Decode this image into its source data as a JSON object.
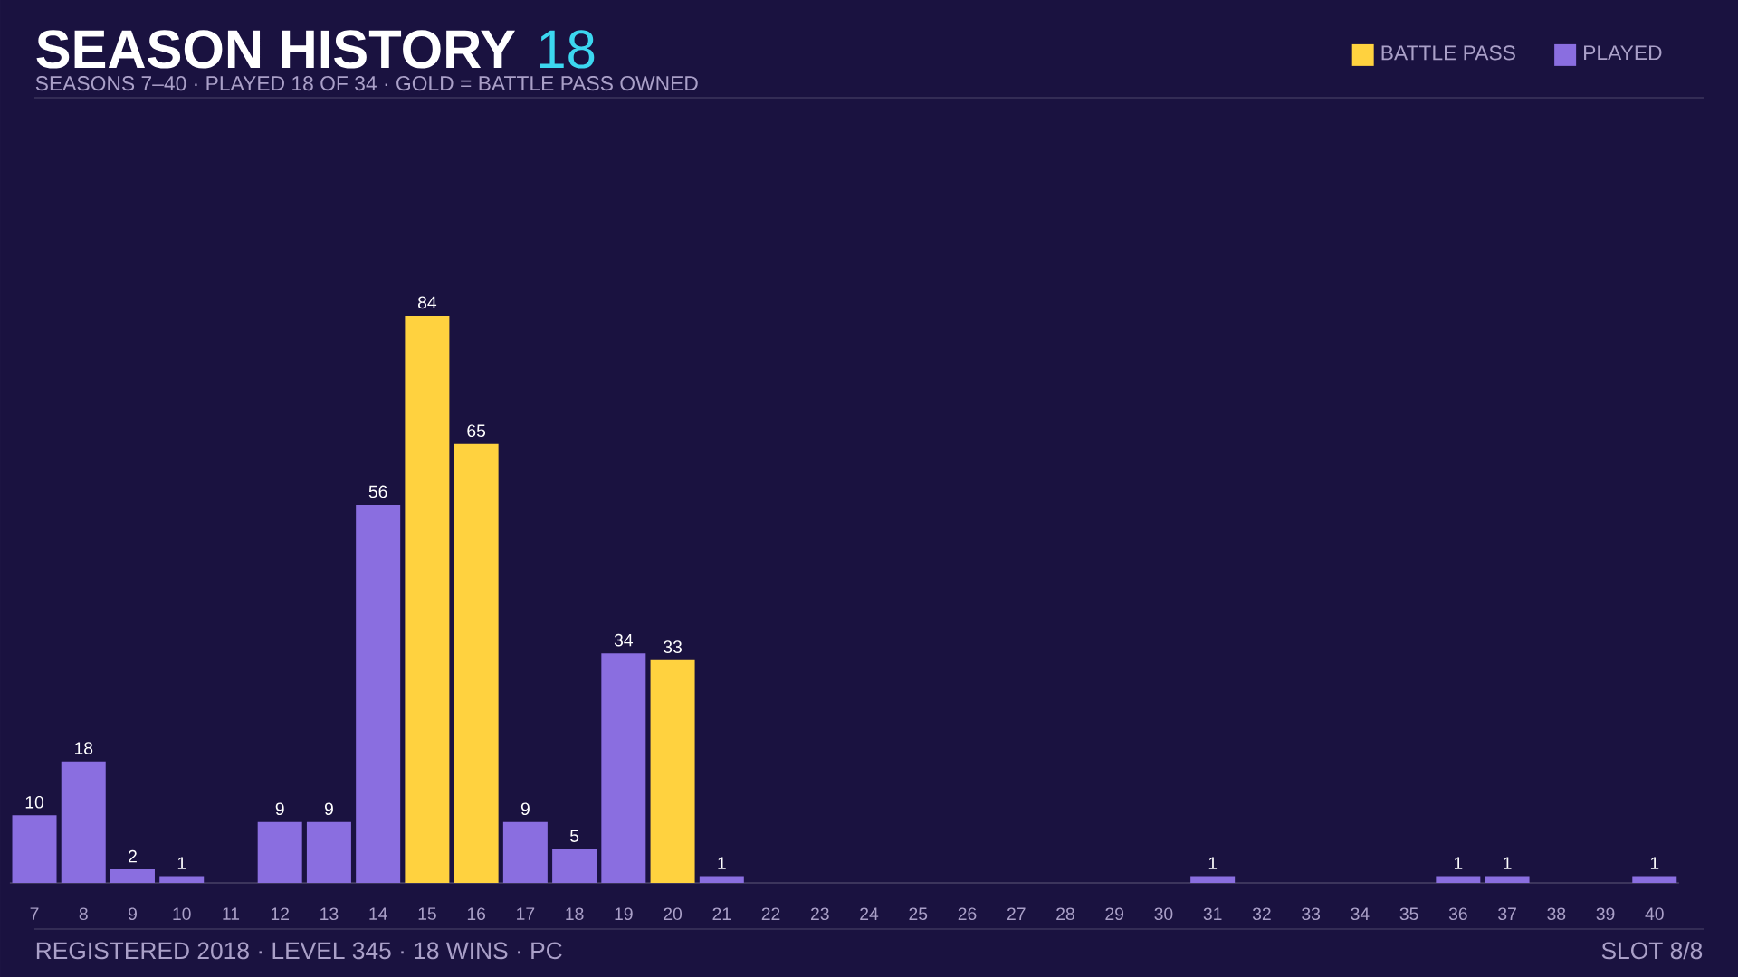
{
  "chart_data": {
    "type": "bar",
    "title": "SEASON HISTORY",
    "subtitle": "SEASONS 7–40 · PLAYED 18 OF 34 · GOLD = BATTLE PASS OWNED",
    "categories": [
      "7",
      "8",
      "9",
      "10",
      "11",
      "12",
      "13",
      "14",
      "15",
      "16",
      "17",
      "18",
      "19",
      "20",
      "21",
      "22",
      "23",
      "24",
      "25",
      "26",
      "27",
      "28",
      "29",
      "30",
      "31",
      "32",
      "33",
      "34",
      "35",
      "36",
      "37",
      "38",
      "39",
      "40"
    ],
    "series": [
      {
        "name": "BATTLE PASS",
        "color": "#ffd23f",
        "values": [
          null,
          null,
          null,
          null,
          null,
          null,
          null,
          null,
          84,
          65,
          null,
          null,
          null,
          33,
          null,
          null,
          null,
          null,
          null,
          null,
          null,
          null,
          null,
          null,
          null,
          null,
          null,
          null,
          null,
          null,
          null,
          null,
          null,
          null
        ],
        "value_labels": [
          null,
          null,
          null,
          null,
          null,
          null,
          null,
          null,
          "84",
          "65",
          null,
          null,
          null,
          "33",
          null,
          null,
          null,
          null,
          null,
          null,
          null,
          null,
          null,
          null,
          null,
          null,
          null,
          null,
          null,
          null,
          null,
          null,
          null,
          null
        ]
      },
      {
        "name": "PLAYED",
        "color": "#8a6ee0",
        "values": [
          10,
          18,
          2,
          1,
          0,
          9,
          9,
          56,
          null,
          null,
          9,
          5,
          34,
          null,
          1,
          0,
          0,
          0,
          0,
          0,
          0,
          0,
          0,
          0,
          1,
          0,
          0,
          0,
          0,
          1,
          1,
          0,
          0,
          1
        ],
        "value_labels": [
          "10",
          "18",
          "2",
          "1",
          null,
          "9",
          "9",
          "56",
          null,
          null,
          "9",
          "5",
          "34",
          null,
          "1",
          null,
          null,
          null,
          null,
          null,
          null,
          null,
          null,
          null,
          "1",
          null,
          null,
          null,
          null,
          "1",
          "1",
          null,
          null,
          "1"
        ]
      }
    ],
    "legend": "top right",
    "annotations": [
      "18",
      "REGISTERED 2018 · LEVEL 345 · 18 WINS · PC",
      "SLOT 8/8"
    ]
  }
}
